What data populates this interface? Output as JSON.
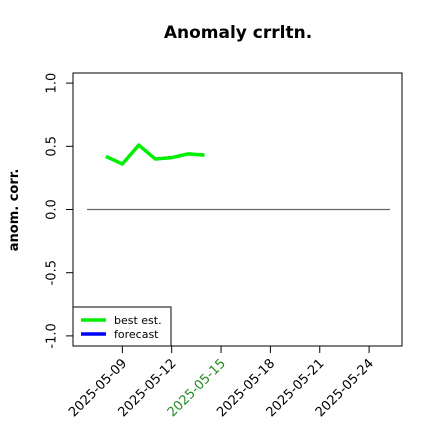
{
  "chart_data": {
    "type": "line",
    "title": "Anomaly crrltn.",
    "y_label": "anom. corr.",
    "x": [
      "2025-05-08",
      "2025-05-09",
      "2025-05-10",
      "2025-05-11",
      "2025-05-12",
      "2025-05-13",
      "2025-05-14"
    ],
    "series": [
      {
        "name": "best est.",
        "color": "#00ee00",
        "values": [
          0.42,
          0.36,
          0.51,
          0.4,
          0.41,
          0.44,
          0.43
        ]
      },
      {
        "name": "forecast",
        "color": "#0000ff",
        "values": [
          null,
          null,
          null,
          null,
          null,
          null,
          null
        ]
      }
    ],
    "xlim": [
      "2025-05-06",
      "2025-05-26"
    ],
    "xticks": [
      "2025-05-09",
      "2025-05-12",
      "2025-05-15",
      "2025-05-18",
      "2025-05-21",
      "2025-05-24"
    ],
    "highlighted_xtick": "2025-05-15",
    "highlight_color": "#228b22",
    "ylim": [
      -1.08,
      1.08
    ],
    "yticks": [
      {
        "value": -1,
        "label": "-1.0"
      },
      -0.5,
      {
        "value": 0,
        "label": "0.0"
      },
      0.5,
      {
        "value": 1,
        "label": "1.0"
      }
    ],
    "reference_line": 0,
    "reference_color": "#666666",
    "legend": "bottomleft"
  }
}
